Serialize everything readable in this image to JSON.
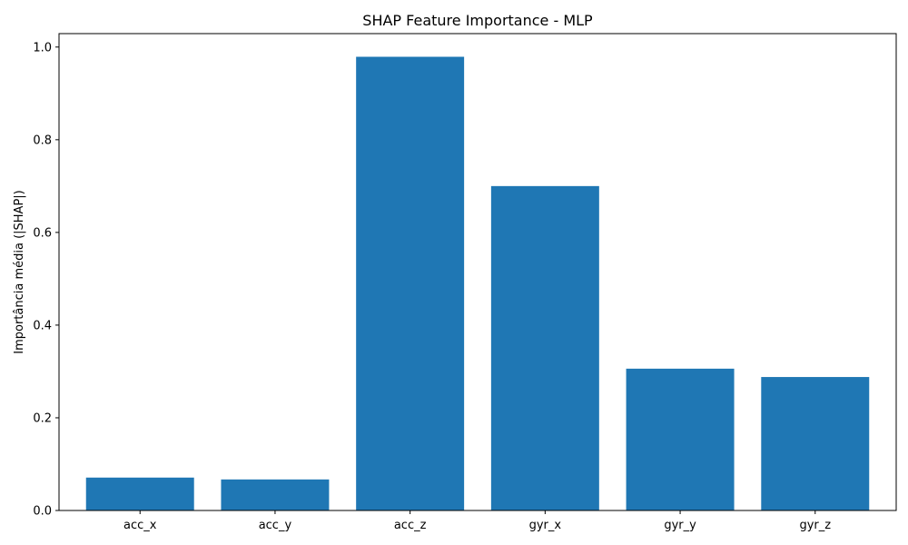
{
  "chart_data": {
    "type": "bar",
    "title": "SHAP Feature Importance - MLP",
    "xlabel": "",
    "ylabel": "Importância média (|SHAP|)",
    "categories": [
      "acc_x",
      "acc_y",
      "acc_z",
      "gyr_x",
      "gyr_y",
      "gyr_z"
    ],
    "values": [
      0.071,
      0.067,
      0.979,
      0.7,
      0.306,
      0.288
    ],
    "ylim": [
      0,
      1.029
    ],
    "yticks": [
      0.0,
      0.2,
      0.4,
      0.6,
      0.8,
      1.0
    ],
    "ytick_labels": [
      "0.0",
      "0.2",
      "0.4",
      "0.6",
      "0.8",
      "1.0"
    ],
    "bar_color": "#1f77b4",
    "grid": false,
    "legend": "none"
  }
}
